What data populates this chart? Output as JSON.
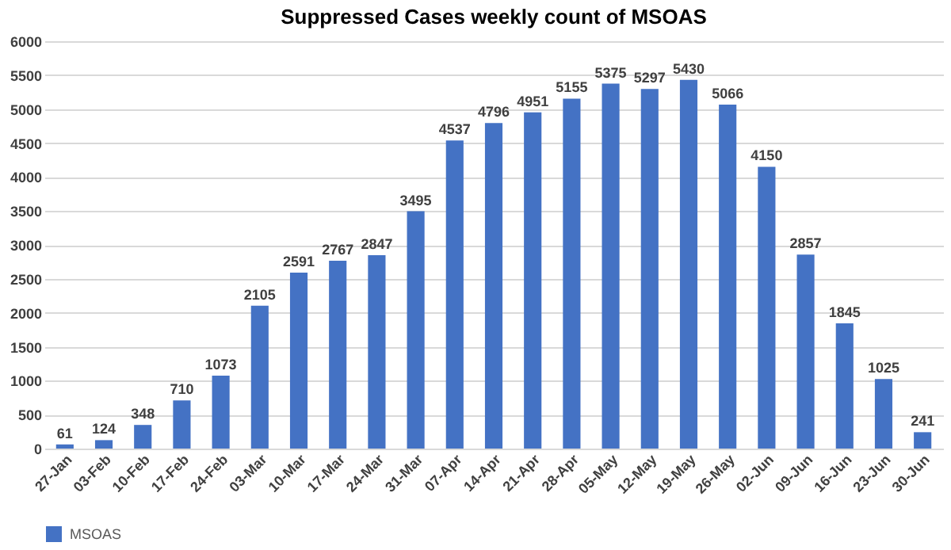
{
  "chart_data": {
    "type": "bar",
    "title": "Suppressed Cases weekly count of MSOAS",
    "categories": [
      "27-Jan",
      "03-Feb",
      "10-Feb",
      "17-Feb",
      "24-Feb",
      "03-Mar",
      "10-Mar",
      "17-Mar",
      "24-Mar",
      "31-Mar",
      "07-Apr",
      "14-Apr",
      "21-Apr",
      "28-Apr",
      "05-May",
      "12-May",
      "19-May",
      "26-May",
      "02-Jun",
      "09-Jun",
      "16-Jun",
      "23-Jun",
      "30-Jun"
    ],
    "series": [
      {
        "name": "MSOAS",
        "color": "#4472c4",
        "values": [
          61,
          124,
          348,
          710,
          1073,
          2105,
          2591,
          2767,
          2847,
          3495,
          4537,
          4796,
          4951,
          5155,
          5375,
          5297,
          5430,
          5066,
          4150,
          2857,
          1845,
          1025,
          241
        ]
      }
    ],
    "ylim": [
      0,
      6000
    ],
    "yticks": [
      0,
      500,
      1000,
      1500,
      2000,
      2500,
      3000,
      3500,
      4000,
      4500,
      5000,
      5500,
      6000
    ],
    "grid": "y",
    "legend": "bottom",
    "data_labels": true
  }
}
